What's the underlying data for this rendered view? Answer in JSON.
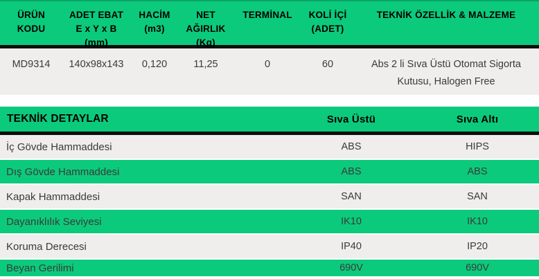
{
  "colors": {
    "green": "#0cca7c",
    "green_edge": "#0aa368",
    "row_gray": "#efeeec",
    "line_black": "#0e0e0e",
    "text_dark": "#3a3a3a",
    "header_black": "#000000",
    "page_bg": "#ffffff"
  },
  "table1": {
    "columns": [
      {
        "lines": [
          "ÜRÜN",
          "KODU"
        ]
      },
      {
        "lines": [
          "ADET EBAT",
          "E x Y x B",
          "(mm)"
        ]
      },
      {
        "lines": [
          "HACİM",
          "(m3)"
        ]
      },
      {
        "lines": [
          "NET",
          "AĞIRLIK",
          "(Kg)"
        ]
      },
      {
        "lines": [
          "TERMİNAL"
        ]
      },
      {
        "lines": [
          "KOLİ İÇİ",
          "(ADET)"
        ]
      },
      {
        "lines": [
          "TEKNİK ÖZELLİK & MALZEME"
        ]
      }
    ],
    "row": {
      "urun_kodu": "MD9314",
      "adet_ebat": "140x98x143",
      "hacim": "0,120",
      "net_agirlik": "11,25",
      "terminal": "0",
      "koli_ici": "60",
      "teknik_ozellik": "Abs 2 li Sıva Üstü Otomat Sigorta Kutusu, Halogen Free"
    }
  },
  "table2": {
    "title": "TEKNİK DETAYLAR",
    "col_headers": [
      "Sıva Üstü",
      "Sıva Altı"
    ],
    "rows": [
      {
        "label": "İç Gövde Hammaddesi",
        "siva_ustu": "ABS",
        "siva_alti": "HIPS"
      },
      {
        "label": "Dış Gövde Hammaddesi",
        "siva_ustu": "ABS",
        "siva_alti": "ABS"
      },
      {
        "label": "Kapak Hammaddesi",
        "siva_ustu": "SAN",
        "siva_alti": "SAN"
      },
      {
        "label": "Dayanıklılık Seviyesi",
        "siva_ustu": "IK10",
        "siva_alti": "IK10"
      },
      {
        "label": "Koruma Derecesi",
        "siva_ustu": "IP40",
        "siva_alti": "IP20"
      },
      {
        "label": "Beyan Gerilimi",
        "siva_ustu": "690V",
        "siva_alti": "690V"
      }
    ]
  }
}
